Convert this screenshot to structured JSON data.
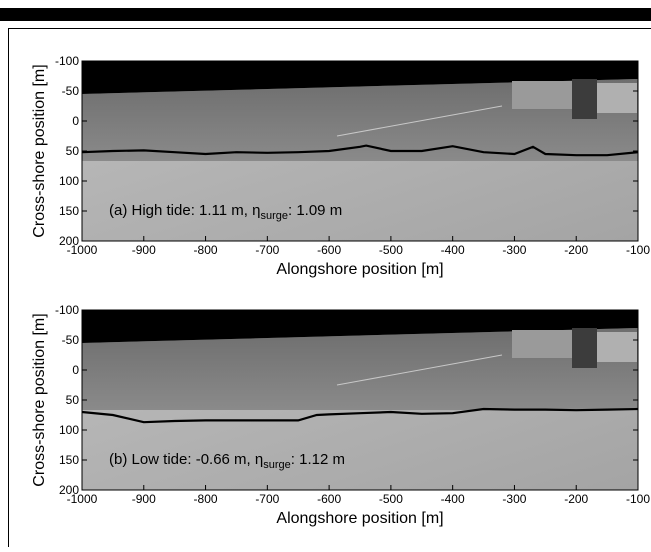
{
  "chart_data": [
    {
      "type": "line",
      "xlabel": "Alongshore position [m]",
      "ylabel": "Cross-shore position [m]",
      "annotation_parts": [
        "(a) High tide: 1.11 m, η",
        "surge",
        ": 1.09 m"
      ],
      "xlim": [
        -1000,
        -100
      ],
      "ylim": [
        200,
        -100
      ],
      "xticks": [
        -1000,
        -900,
        -800,
        -700,
        -600,
        -500,
        -400,
        -300,
        -200,
        -100
      ],
      "yticks": [
        -100,
        -50,
        0,
        50,
        100,
        150,
        200
      ],
      "series": [
        {
          "color": "#000000",
          "x": [
            -1000,
            -950,
            -900,
            -850,
            -800,
            -750,
            -700,
            -650,
            -600,
            -550,
            -540,
            -500,
            -450,
            -400,
            -350,
            -300,
            -270,
            -250,
            -200,
            -150,
            -100
          ],
          "values": [
            52,
            50,
            49,
            52,
            55,
            52,
            53,
            52,
            50,
            43,
            41,
            50,
            50,
            42,
            52,
            55,
            43,
            55,
            57,
            57,
            52
          ]
        }
      ]
    },
    {
      "type": "line",
      "xlabel": "Alongshore position [m]",
      "ylabel": "Cross-shore position [m]",
      "annotation_parts": [
        "(b) Low tide: -0.66 m, η",
        "surge",
        ": 1.12 m"
      ],
      "xlim": [
        -1000,
        -100
      ],
      "ylim": [
        200,
        -100
      ],
      "xticks": [
        -1000,
        -900,
        -800,
        -700,
        -600,
        -500,
        -400,
        -300,
        -200,
        -100
      ],
      "yticks": [
        -100,
        -50,
        0,
        50,
        100,
        150,
        200
      ],
      "series": [
        {
          "color": "#000000",
          "x": [
            -1000,
            -950,
            -900,
            -850,
            -800,
            -750,
            -700,
            -650,
            -620,
            -600,
            -550,
            -500,
            -450,
            -400,
            -350,
            -300,
            -250,
            -200,
            -150,
            -100
          ],
          "values": [
            70,
            75,
            87,
            85,
            84,
            84,
            84,
            84,
            75,
            74,
            72,
            70,
            73,
            72,
            65,
            66,
            66,
            67,
            66,
            65
          ]
        }
      ]
    }
  ]
}
